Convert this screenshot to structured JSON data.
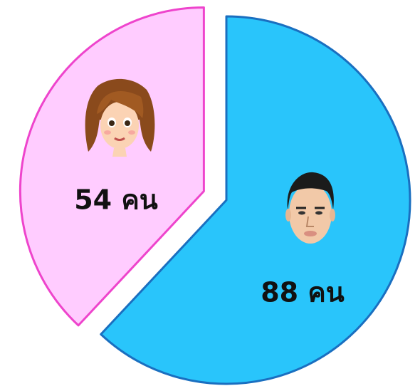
{
  "chart_data": {
    "type": "pie",
    "values": [
      54,
      88
    ],
    "value_labels": [
      "54 คน",
      "88 คน"
    ],
    "colors": [
      "#ffccff",
      "#29c5fb"
    ],
    "edge_colors": [
      "#ee44cc",
      "#1a6fc0"
    ],
    "exploded": [
      true,
      false
    ]
  }
}
